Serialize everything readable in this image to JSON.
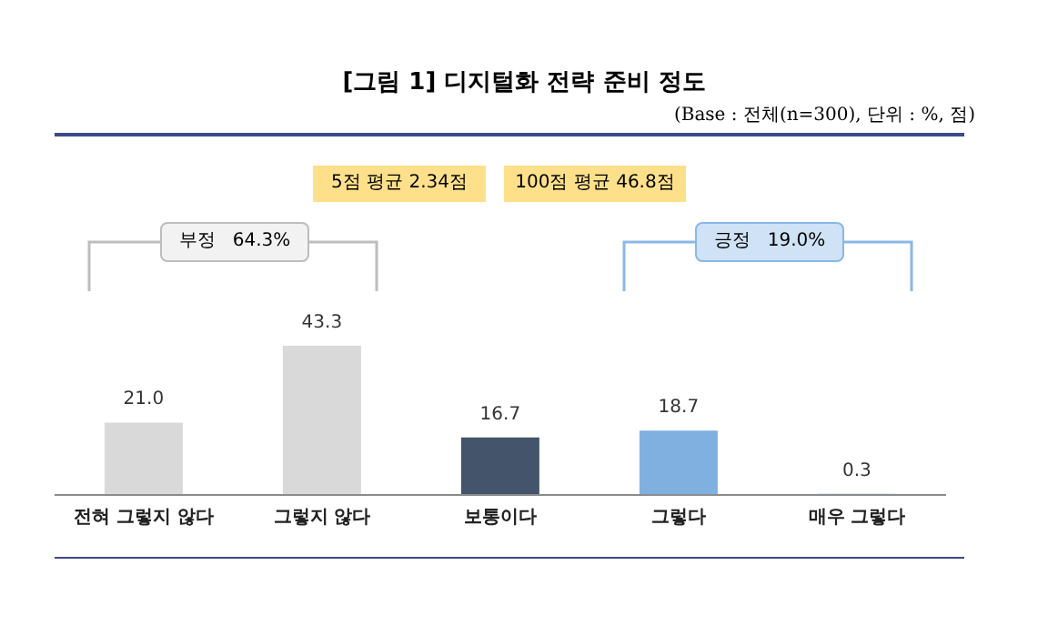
{
  "chart_data": {
    "type": "bar",
    "title": "[그림 1] 디지털화 전략 준비 정도",
    "subtitle": "(Base : 전체(n=300), 단위 : %, 점)",
    "annotations": [
      "5점 평균 2.34점",
      "100점 평균 46.8점",
      "부정   64.3%",
      "긍정   19.0%"
    ],
    "categories": [
      "전혀 그렇지 않다",
      "그렇지 않다",
      "보통이다",
      "그렇다",
      "매우 그렇다"
    ],
    "values": [
      21.0,
      43.3,
      16.7,
      18.7,
      0.3
    ],
    "colors": [
      "#d9d9d9",
      "#d9d9d9",
      "#44546a",
      "#7fb0e0",
      "#7fb0e0"
    ],
    "value_labels": [
      "21.0",
      "43.3",
      "16.7",
      "18.7",
      "0.3"
    ],
    "grid": false,
    "legend": false
  }
}
